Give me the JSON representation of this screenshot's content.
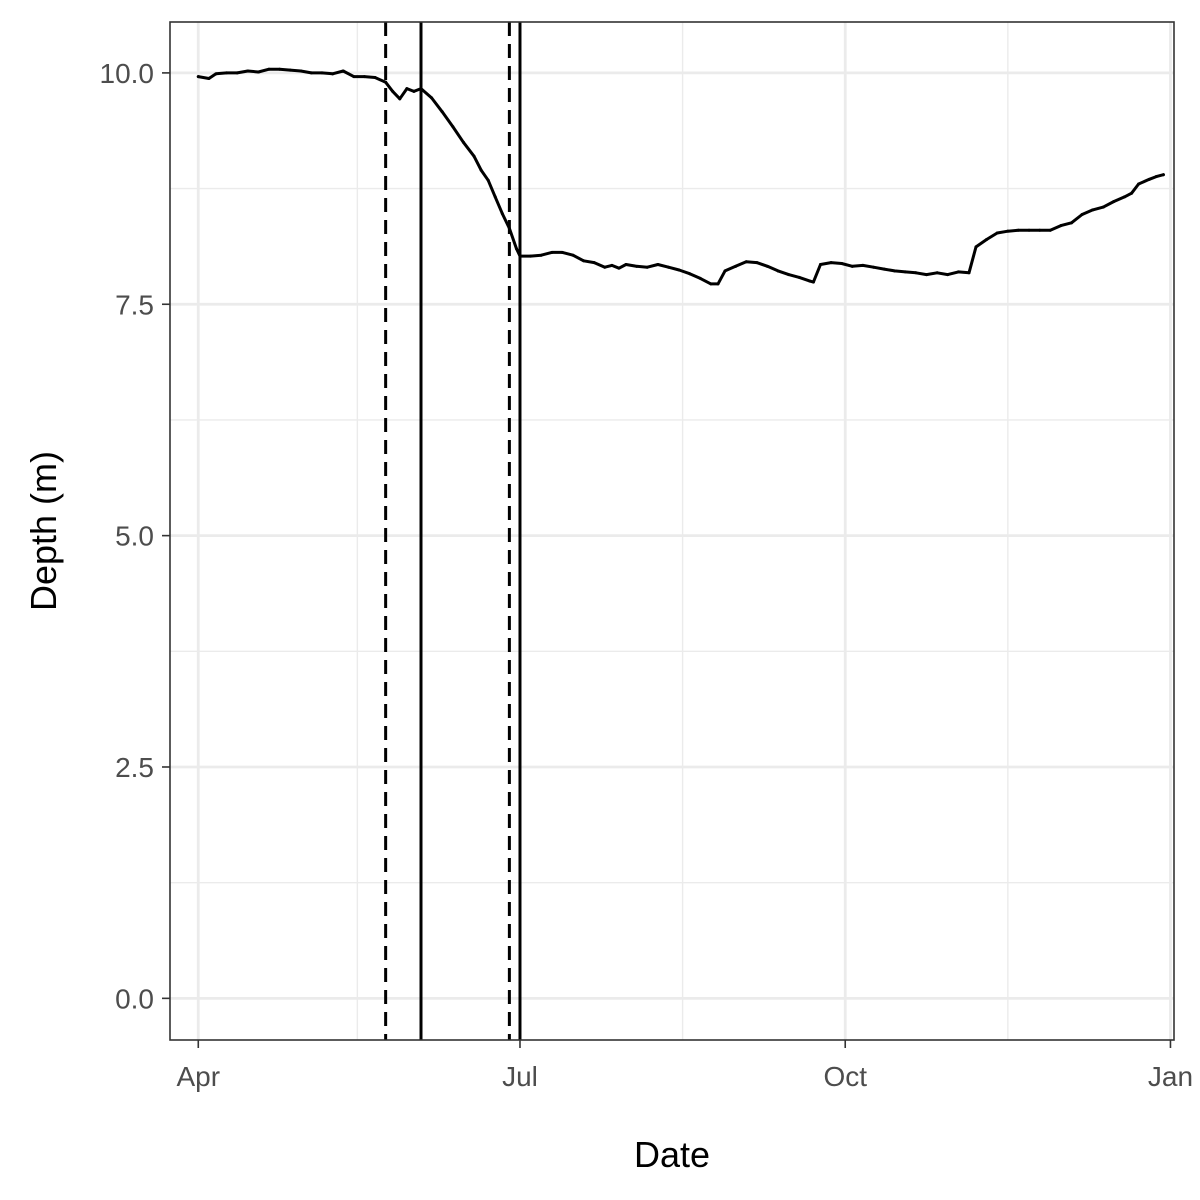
{
  "chart_data": {
    "type": "line",
    "title": "",
    "xlabel": "Date",
    "ylabel": "Depth (m)",
    "x_type": "date",
    "xlim": [
      "2021-03-24",
      "2022-01-02"
    ],
    "ylim": [
      -0.45,
      10.55
    ],
    "x_ticks": [
      {
        "date": "2021-04-01",
        "label": "Apr"
      },
      {
        "date": "2021-07-01",
        "label": "Jul"
      },
      {
        "date": "2021-10-01",
        "label": "Oct"
      },
      {
        "date": "2022-01-01",
        "label": "Jan"
      }
    ],
    "x_minor_ticks": [
      "2021-05-16",
      "2021-08-16",
      "2021-11-16"
    ],
    "y_ticks": [
      {
        "value": 0.0,
        "label": "0.0"
      },
      {
        "value": 2.5,
        "label": "2.5"
      },
      {
        "value": 5.0,
        "label": "5.0"
      },
      {
        "value": 7.5,
        "label": "7.5"
      },
      {
        "value": 10.0,
        "label": "10.0"
      }
    ],
    "y_minor_ticks": [
      1.25,
      3.75,
      6.25,
      8.75
    ],
    "grid": true,
    "colors": {
      "line": "#000000",
      "grid": "#ebebeb",
      "panel_border": "#333333",
      "tick_label": "#4d4d4d"
    },
    "vertical_lines": [
      {
        "date": "2021-05-24",
        "style": "dashed"
      },
      {
        "date": "2021-06-03",
        "style": "solid"
      },
      {
        "date": "2021-06-28",
        "style": "dashed"
      },
      {
        "date": "2021-07-01",
        "style": "solid"
      }
    ],
    "series": [
      {
        "points": [
          [
            "2021-04-01",
            9.96
          ],
          [
            "2021-04-04",
            9.94
          ],
          [
            "2021-04-06",
            9.99
          ],
          [
            "2021-04-09",
            10.0
          ],
          [
            "2021-04-12",
            10.0
          ],
          [
            "2021-04-15",
            10.02
          ],
          [
            "2021-04-18",
            10.01
          ],
          [
            "2021-04-21",
            10.04
          ],
          [
            "2021-04-24",
            10.04
          ],
          [
            "2021-04-27",
            10.03
          ],
          [
            "2021-04-30",
            10.02
          ],
          [
            "2021-05-03",
            10.0
          ],
          [
            "2021-05-06",
            10.0
          ],
          [
            "2021-05-09",
            9.99
          ],
          [
            "2021-05-12",
            10.02
          ],
          [
            "2021-05-15",
            9.96
          ],
          [
            "2021-05-18",
            9.96
          ],
          [
            "2021-05-21",
            9.95
          ],
          [
            "2021-05-24",
            9.9
          ],
          [
            "2021-05-26",
            9.8
          ],
          [
            "2021-05-28",
            9.72
          ],
          [
            "2021-05-30",
            9.83
          ],
          [
            "2021-06-01",
            9.8
          ],
          [
            "2021-06-03",
            9.83
          ],
          [
            "2021-06-06",
            9.73
          ],
          [
            "2021-06-09",
            9.58
          ],
          [
            "2021-06-12",
            9.42
          ],
          [
            "2021-06-15",
            9.25
          ],
          [
            "2021-06-18",
            9.1
          ],
          [
            "2021-06-20",
            8.95
          ],
          [
            "2021-06-22",
            8.84
          ],
          [
            "2021-06-24",
            8.66
          ],
          [
            "2021-06-26",
            8.48
          ],
          [
            "2021-06-28",
            8.32
          ],
          [
            "2021-06-30",
            8.1
          ],
          [
            "2021-07-01",
            8.02
          ],
          [
            "2021-07-04",
            8.02
          ],
          [
            "2021-07-07",
            8.03
          ],
          [
            "2021-07-10",
            8.06
          ],
          [
            "2021-07-13",
            8.06
          ],
          [
            "2021-07-16",
            8.03
          ],
          [
            "2021-07-19",
            7.97
          ],
          [
            "2021-07-22",
            7.95
          ],
          [
            "2021-07-25",
            7.9
          ],
          [
            "2021-07-27",
            7.92
          ],
          [
            "2021-07-29",
            7.89
          ],
          [
            "2021-07-31",
            7.93
          ],
          [
            "2021-08-03",
            7.91
          ],
          [
            "2021-08-06",
            7.9
          ],
          [
            "2021-08-09",
            7.93
          ],
          [
            "2021-08-12",
            7.9
          ],
          [
            "2021-08-15",
            7.87
          ],
          [
            "2021-08-18",
            7.83
          ],
          [
            "2021-08-21",
            7.78
          ],
          [
            "2021-08-24",
            7.72
          ],
          [
            "2021-08-26",
            7.72
          ],
          [
            "2021-08-28",
            7.86
          ],
          [
            "2021-08-31",
            7.91
          ],
          [
            "2021-09-03",
            7.96
          ],
          [
            "2021-09-06",
            7.95
          ],
          [
            "2021-09-09",
            7.91
          ],
          [
            "2021-09-12",
            7.86
          ],
          [
            "2021-09-15",
            7.82
          ],
          [
            "2021-09-18",
            7.79
          ],
          [
            "2021-09-21",
            7.75
          ],
          [
            "2021-09-22",
            7.74
          ],
          [
            "2021-09-24",
            7.93
          ],
          [
            "2021-09-27",
            7.95
          ],
          [
            "2021-09-30",
            7.94
          ],
          [
            "2021-10-03",
            7.91
          ],
          [
            "2021-10-06",
            7.92
          ],
          [
            "2021-10-09",
            7.9
          ],
          [
            "2021-10-12",
            7.88
          ],
          [
            "2021-10-15",
            7.86
          ],
          [
            "2021-10-18",
            7.85
          ],
          [
            "2021-10-21",
            7.84
          ],
          [
            "2021-10-24",
            7.82
          ],
          [
            "2021-10-27",
            7.84
          ],
          [
            "2021-10-30",
            7.82
          ],
          [
            "2021-11-02",
            7.85
          ],
          [
            "2021-11-05",
            7.84
          ],
          [
            "2021-11-07",
            8.12
          ],
          [
            "2021-11-10",
            8.2
          ],
          [
            "2021-11-13",
            8.27
          ],
          [
            "2021-11-16",
            8.29
          ],
          [
            "2021-11-19",
            8.3
          ],
          [
            "2021-11-22",
            8.3
          ],
          [
            "2021-11-25",
            8.3
          ],
          [
            "2021-11-28",
            8.3
          ],
          [
            "2021-12-01",
            8.35
          ],
          [
            "2021-12-04",
            8.38
          ],
          [
            "2021-12-07",
            8.47
          ],
          [
            "2021-12-10",
            8.52
          ],
          [
            "2021-12-13",
            8.55
          ],
          [
            "2021-12-16",
            8.61
          ],
          [
            "2021-12-19",
            8.66
          ],
          [
            "2021-12-21",
            8.7
          ],
          [
            "2021-12-23",
            8.8
          ],
          [
            "2021-12-26",
            8.85
          ],
          [
            "2021-12-28",
            8.88
          ],
          [
            "2021-12-30",
            8.9
          ]
        ]
      }
    ]
  }
}
